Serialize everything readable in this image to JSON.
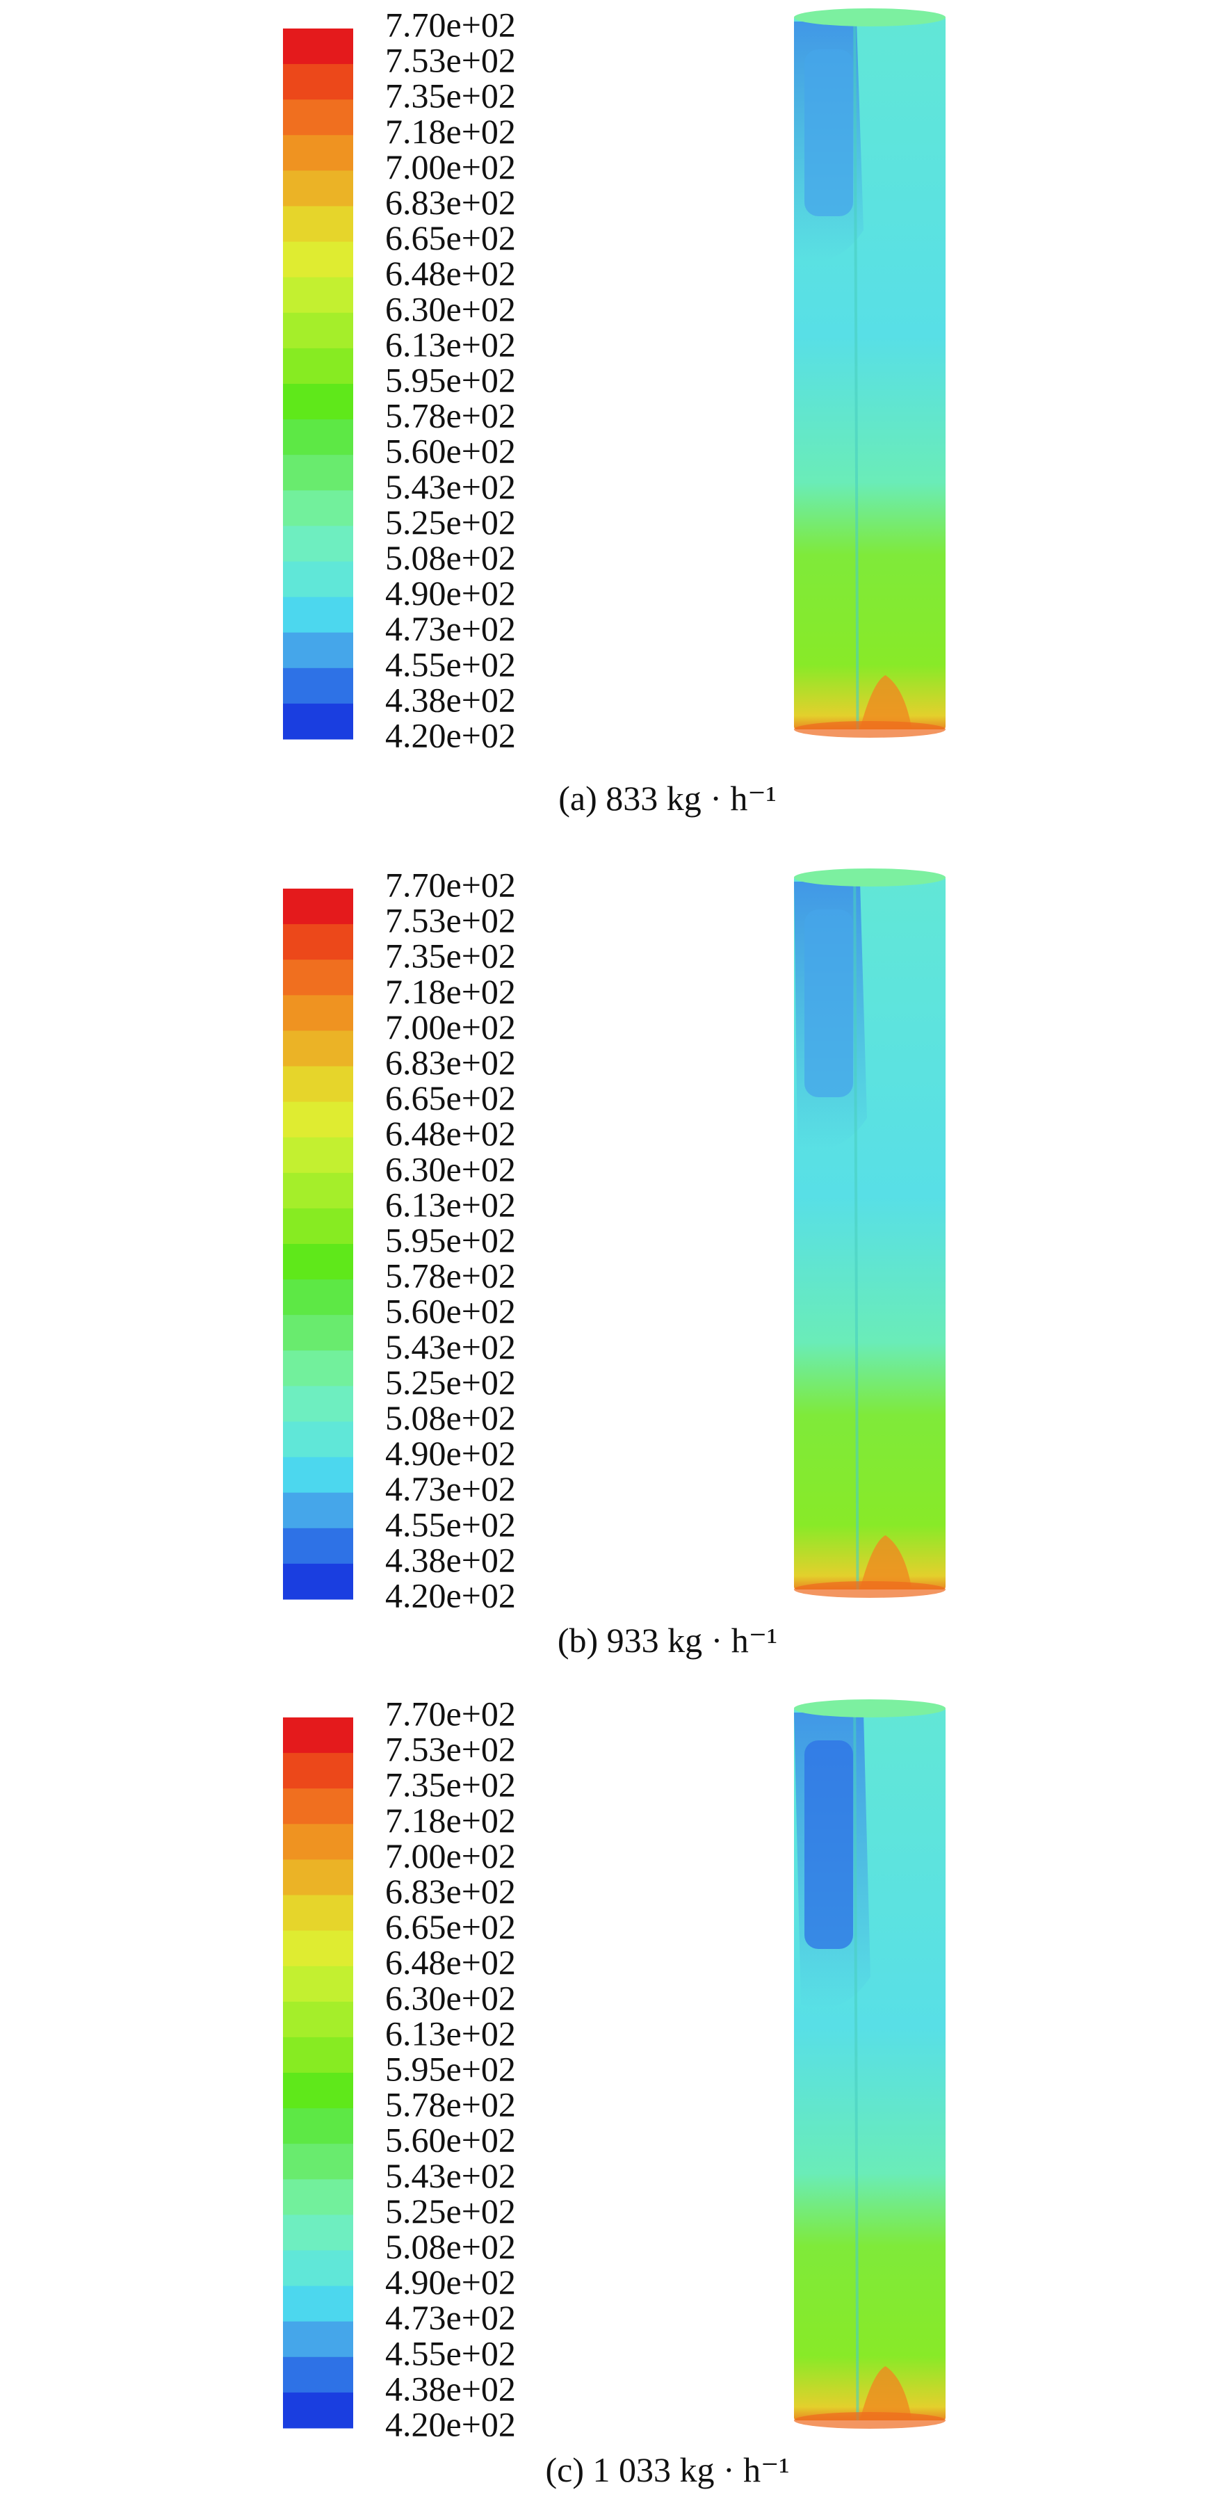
{
  "legend_colors": [
    "#e41a1c",
    "#ec481a",
    "#f06f1f",
    "#ef9321",
    "#ebb326",
    "#e6d52b",
    "#dfec31",
    "#c3f030",
    "#a5ee2a",
    "#87eb22",
    "#5fe81a",
    "#5de845",
    "#69eb6e",
    "#72f09c",
    "#6eeec0",
    "#60e7d8",
    "#4cd7ee",
    "#45a6ea",
    "#2e72e6",
    "#1a3ee0"
  ],
  "panels": [
    {
      "legend": {
        "labels": [
          "7.70e+02",
          "7.53e+02",
          "7.35e+02",
          "7.18e+02",
          "7.00e+02",
          "6.83e+02",
          "6.65e+02",
          "6.48e+02",
          "6.30e+02",
          "6.13e+02",
          "5.95e+02",
          "5.78e+02",
          "5.60e+02",
          "5.43e+02",
          "5.25e+02",
          "5.08e+02",
          "4.90e+02",
          "4.73e+02",
          "4.55e+02",
          "4.38e+02",
          "4.20e+02"
        ]
      },
      "caption": "(a) 833 kg · h⁻¹"
    },
    {
      "legend": {
        "labels": [
          "7.70e+02",
          "7.53e+02",
          "7.35e+02",
          "7.18e+02",
          "7.00e+02",
          "6.83e+02",
          "6.65e+02",
          "6.48e+02",
          "6.30e+02",
          "6.13e+02",
          "5.95e+02",
          "5.78e+02",
          "5.60e+02",
          "5.43e+02",
          "5.25e+02",
          "5.08e+02",
          "4.90e+02",
          "4.73e+02",
          "4.55e+02",
          "4.38e+02",
          "4.20e+02"
        ]
      },
      "caption": "(b) 933 kg · h⁻¹"
    },
    {
      "legend": {
        "labels": [
          "7.70e+02",
          "7.53e+02",
          "7.35e+02",
          "7.18e+02",
          "7.00e+02",
          "6.83e+02",
          "6.65e+02",
          "6.48e+02",
          "6.30e+02",
          "6.13e+02",
          "5.95e+02",
          "5.78e+02",
          "5.60e+02",
          "5.43e+02",
          "5.25e+02",
          "5.08e+02",
          "4.90e+02",
          "4.73e+02",
          "4.55e+02",
          "4.38e+02",
          "4.20e+02"
        ]
      },
      "caption": "(c) 1 033 kg · h⁻¹"
    }
  ]
}
